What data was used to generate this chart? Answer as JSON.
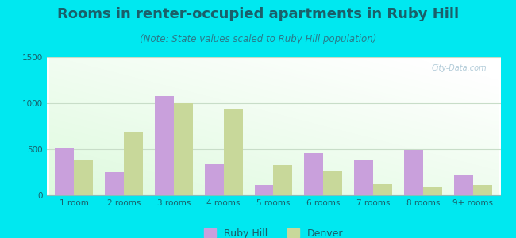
{
  "title": "Rooms in renter-occupied apartments in Ruby Hill",
  "subtitle": "(Note: State values scaled to Ruby Hill population)",
  "categories": [
    "1 room",
    "2 rooms",
    "3 rooms",
    "4 rooms",
    "5 rooms",
    "6 rooms",
    "7 rooms",
    "8 rooms",
    "9+ rooms"
  ],
  "ruby_hill": [
    520,
    250,
    1080,
    340,
    110,
    460,
    380,
    490,
    220
  ],
  "denver": [
    380,
    680,
    1000,
    930,
    330,
    260,
    120,
    90,
    110
  ],
  "ruby_hill_color": "#c9a0dc",
  "denver_color": "#c8d89a",
  "ylim": [
    0,
    1500
  ],
  "yticks": [
    0,
    500,
    1000,
    1500
  ],
  "bg_outer": "#00e8f0",
  "title_color": "#1a5f6a",
  "subtitle_color": "#2a7a8a",
  "tick_color": "#1a5f6a",
  "grid_color": "#c8ddc8",
  "title_fontsize": 13,
  "subtitle_fontsize": 8.5,
  "tick_fontsize": 7.5,
  "legend_fontsize": 9,
  "bar_width": 0.38
}
